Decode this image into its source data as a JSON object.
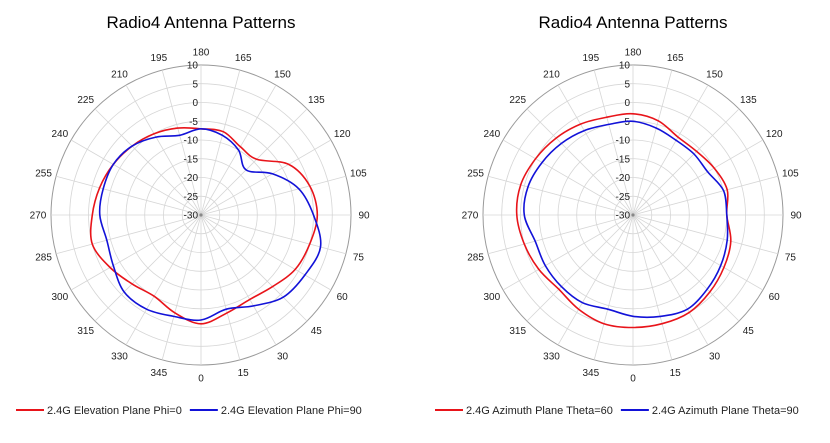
{
  "chart_data": [
    {
      "type": "polar-line",
      "title": "Radio4 Antenna Patterns",
      "radial_ticks": [
        10,
        5,
        0,
        -5,
        -10,
        -15,
        -20,
        -25,
        -30
      ],
      "rlim": [
        -30,
        10
      ],
      "angle_ticks": [
        0,
        15,
        30,
        45,
        60,
        75,
        90,
        105,
        120,
        135,
        150,
        165,
        180,
        195,
        210,
        225,
        240,
        255,
        270,
        285,
        300,
        315,
        330,
        345
      ],
      "angle_zero": "bottom",
      "angle_direction": "counter-clockwise",
      "grid": true,
      "legend_position": "bottom",
      "angles": [
        0,
        15,
        30,
        45,
        60,
        75,
        90,
        105,
        120,
        135,
        150,
        165,
        180,
        195,
        210,
        225,
        240,
        255,
        270,
        285,
        300,
        315,
        330,
        345
      ],
      "series": [
        {
          "name": "2.4G Elevation Plane Phi=0",
          "color": "#e8141a",
          "values": [
            -1,
            -3,
            -4,
            -3,
            -1,
            0,
            1,
            0,
            -3,
            -9,
            -9,
            -7,
            -7,
            -6,
            -5,
            -4,
            -3,
            -2,
            -1,
            0,
            -2,
            -4,
            -5,
            -3
          ]
        },
        {
          "name": "2.4G Elevation Plane Phi=90",
          "color": "#1212d8",
          "values": [
            -2,
            -4,
            -2,
            1,
            2,
            3,
            0,
            -3,
            -8,
            -13,
            -10,
            -8,
            -7,
            -8,
            -6,
            -4,
            -3,
            -3,
            -3,
            -4,
            -3,
            -1,
            -1,
            -2
          ]
        }
      ]
    },
    {
      "type": "polar-line",
      "title": "Radio4 Antenna Patterns",
      "radial_ticks": [
        10,
        5,
        0,
        -5,
        -10,
        -15,
        -20,
        -25,
        -30
      ],
      "rlim": [
        -30,
        10
      ],
      "angle_ticks": [
        0,
        15,
        30,
        45,
        60,
        75,
        90,
        105,
        120,
        135,
        150,
        165,
        180,
        195,
        210,
        225,
        240,
        255,
        270,
        285,
        300,
        315,
        330,
        345
      ],
      "angle_zero": "bottom",
      "angle_direction": "counter-clockwise",
      "grid": true,
      "legend_position": "bottom",
      "angles": [
        0,
        15,
        30,
        45,
        60,
        75,
        90,
        105,
        120,
        135,
        150,
        165,
        180,
        195,
        210,
        225,
        240,
        255,
        270,
        285,
        300,
        315,
        330,
        345
      ],
      "series": [
        {
          "name": "2.4G Azimuth Plane Theta=60",
          "color": "#e8141a",
          "values": [
            0,
            0,
            0,
            -1,
            -2,
            -3,
            -5,
            -4,
            -5,
            -6,
            -6,
            -4,
            -3,
            -3,
            -2,
            -1,
            0,
            1,
            1,
            0,
            -1,
            -2,
            -1,
            0
          ]
        },
        {
          "name": "2.4G Azimuth Plane Theta=90",
          "color": "#1212d8",
          "values": [
            -3,
            -2,
            -1,
            -2,
            -3,
            -4,
            -5,
            -5,
            -7,
            -7,
            -7,
            -6,
            -5,
            -5,
            -4,
            -3,
            -2,
            -1,
            -1,
            -3,
            -3,
            -3,
            -3,
            -4
          ]
        }
      ]
    }
  ]
}
